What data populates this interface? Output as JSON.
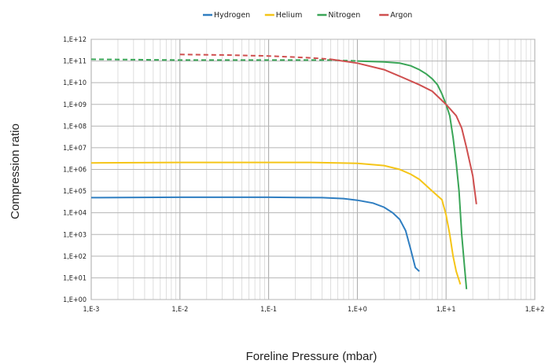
{
  "chart_data": {
    "type": "line",
    "xlabel": "Foreline Pressure (mbar)",
    "ylabel": "Compression ratio",
    "xscale": "log",
    "yscale": "log",
    "xlim": [
      0.001,
      100
    ],
    "ylim": [
      1,
      1000000000000
    ],
    "grid": true,
    "legend_position": "top",
    "x_ticks": [
      "1,E-3",
      "1,E-2",
      "1,E-1",
      "1,E+0",
      "1,E+1",
      "1,E+2"
    ],
    "y_ticks": [
      "1,E+00",
      "1,E+01",
      "1,E+02",
      "1,E+03",
      "1,E+04",
      "1,E+05",
      "1,E+06",
      "1,E+07",
      "1,E+08",
      "1,E+09",
      "1,E+10",
      "1,E+11",
      "1,E+12"
    ],
    "series": [
      {
        "name": "Hydrogen",
        "color": "#2f7ec1",
        "x": [
          0.001,
          0.01,
          0.1,
          0.4,
          0.7,
          1.0,
          1.5,
          2.0,
          2.5,
          3.0,
          3.5,
          4.0,
          4.5,
          5.0
        ],
        "y": [
          50000,
          52000,
          52000,
          50000,
          45000,
          38000,
          28000,
          18000,
          10000,
          5000,
          1500,
          200,
          30,
          20
        ]
      },
      {
        "name": "Helium",
        "color": "#f5c518",
        "x": [
          0.001,
          0.01,
          0.1,
          0.3,
          0.6,
          1.0,
          2.0,
          3.0,
          4.0,
          5.0,
          7.0,
          9.0,
          10.0,
          11.0,
          12.0,
          13.0,
          14.5
        ],
        "y": [
          2000000,
          2100000,
          2100000,
          2100000,
          2000000,
          1900000,
          1500000,
          1000000,
          600000,
          350000,
          100000,
          40000,
          8000,
          1000,
          100,
          20,
          5
        ]
      },
      {
        "name": "Nitrogen",
        "color": "#3aa557",
        "dashed_until": 1.0,
        "x": [
          0.001,
          0.01,
          0.1,
          0.5,
          1.0,
          2.0,
          3.0,
          4.0,
          5.0,
          6.0,
          7.0,
          8.0,
          9.0,
          10.0,
          11.0,
          12.0,
          13.0,
          14.0,
          15.0,
          16.0,
          17.0
        ],
        "y": [
          120000000000,
          110000000000,
          110000000000,
          110000000000,
          100000000000,
          90000000000,
          80000000000,
          60000000000,
          40000000000,
          25000000000,
          15000000000,
          8000000000,
          3000000000,
          1000000000,
          300000000,
          30000000,
          2000000,
          100000,
          1000,
          50,
          3
        ]
      },
      {
        "name": "Argon",
        "color": "#cf4f4f",
        "dashed_until": 0.5,
        "x": [
          0.01,
          0.03,
          0.1,
          0.3,
          0.5,
          1.0,
          2.0,
          3.0,
          5.0,
          7.0,
          10.0,
          13.0,
          15.0,
          17.0,
          20.0,
          22.0
        ],
        "y": [
          200000000000,
          190000000000,
          170000000000,
          140000000000,
          120000000000,
          80000000000,
          40000000000,
          20000000000,
          8000000000,
          4000000000,
          1000000000,
          300000000,
          80000000,
          10000000,
          500000,
          25000
        ]
      }
    ]
  }
}
